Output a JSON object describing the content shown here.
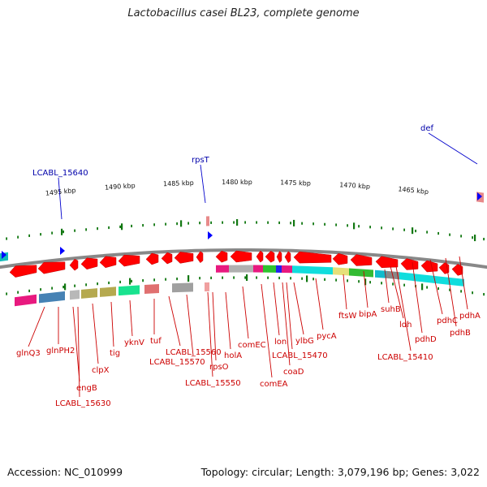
{
  "title": "Lactobacillus casei BL23, complete genome",
  "footer": {
    "accession": "Accession: NC_010999",
    "summary": "Topology: circular; Length: 3,079,196 bp; Genes: 3,022"
  },
  "colors": {
    "gene_arrow": "#ff0000",
    "label_red": "#cc0000",
    "label_blue": "#0000aa",
    "tick_green": "#117711",
    "backbone": "#888888"
  },
  "scale_labels": [
    "1465 kbp",
    "1470 kbp",
    "1475 kbp",
    "1480 kbp",
    "1485 kbp",
    "1490 kbp",
    "1495 kbp"
  ],
  "top_features": [
    "def",
    "rpsT",
    "LCABL_15640"
  ],
  "gene_labels": [
    "glnQ3",
    "glnPH2",
    "engB",
    "LCABL_15630",
    "clpX",
    "tig",
    "yknV",
    "tuf",
    "LCABL_15560",
    "LCABL_15570",
    "LCABL_15550",
    "rpsO",
    "holA",
    "comEC",
    "comEA",
    "lon",
    "coaD",
    "LCABL_15470",
    "ylbG",
    "pycA",
    "ftsW",
    "bipA",
    "suhB",
    "ldh",
    "LCABL_15410",
    "pdhD",
    "pdhC",
    "pdhB",
    "pdhA"
  ]
}
